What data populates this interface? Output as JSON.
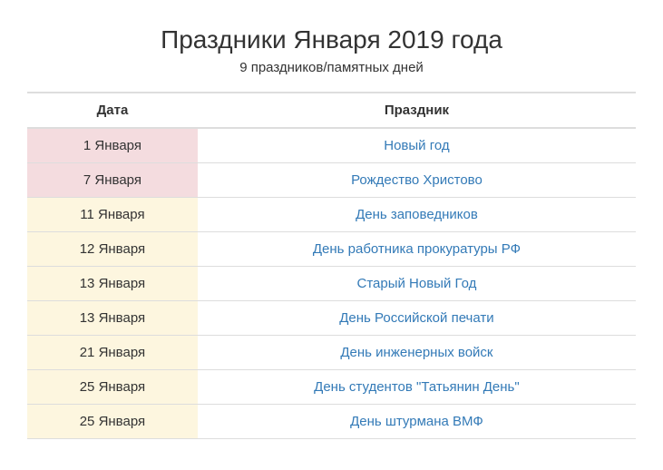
{
  "title": "Праздники Января 2019 года",
  "subtitle": "9 праздников/памятных дней",
  "columns": {
    "date": "Дата",
    "holiday": "Праздник"
  },
  "colors": {
    "link": "#337ab7",
    "text": "#333333",
    "border": "#dddddd",
    "date_bg_pink": "#f4dcdf",
    "date_bg_cream": "#fdf6df",
    "page_bg": "#ffffff"
  },
  "rows": [
    {
      "date": "1 Января",
      "name": "Новый год",
      "date_bg": "pink"
    },
    {
      "date": "7 Января",
      "name": "Рождество Христово",
      "date_bg": "pink"
    },
    {
      "date": "11 Января",
      "name": "День заповедников",
      "date_bg": "cream"
    },
    {
      "date": "12 Января",
      "name": "День работника прокуратуры РФ",
      "date_bg": "cream"
    },
    {
      "date": "13 Января",
      "name": "Старый Новый Год",
      "date_bg": "cream"
    },
    {
      "date": "13 Января",
      "name": "День Российской печати",
      "date_bg": "cream"
    },
    {
      "date": "21 Января",
      "name": "День инженерных войск",
      "date_bg": "cream"
    },
    {
      "date": "25 Января",
      "name": "День студентов \"Татьянин День\"",
      "date_bg": "cream"
    },
    {
      "date": "25 Января",
      "name": "День штурмана ВМФ",
      "date_bg": "cream"
    }
  ]
}
